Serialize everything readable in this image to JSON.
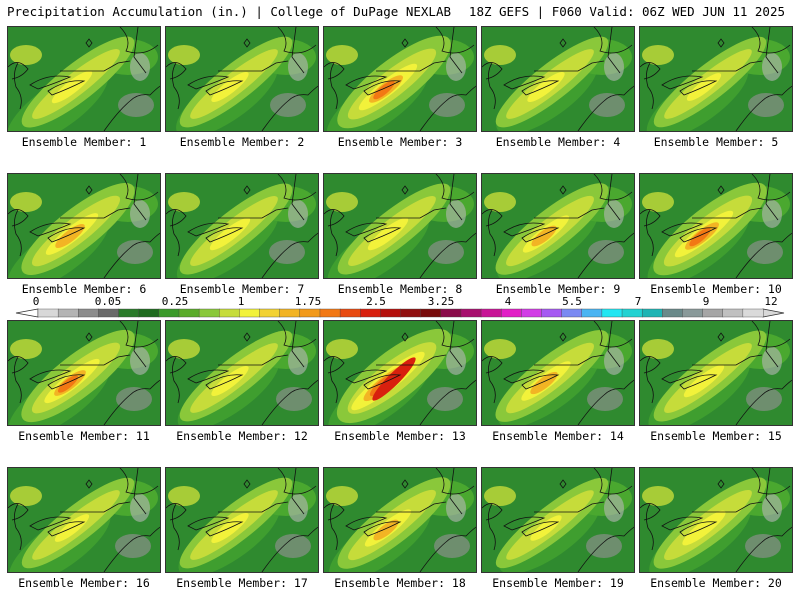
{
  "header": {
    "left": "Precipitation Accumulation (in.) | College of DuPage NEXLAB",
    "right": "18Z GEFS | F060 Valid: 06Z WED JUN 11 2025"
  },
  "legend": {
    "labels": [
      "0",
      "0.05",
      "0.25",
      "1",
      "1.75",
      "2.5",
      "3.25",
      "4",
      "5.5",
      "7",
      "9",
      "12"
    ],
    "colors": [
      "#d8d8d8",
      "#b4b4b4",
      "#8c8c8c",
      "#6a6a6a",
      "#2a7a2a",
      "#1e6b1e",
      "#3a9a2a",
      "#5aab2a",
      "#8ac83a",
      "#c6dc3a",
      "#f2f23a",
      "#f2d232",
      "#f2b424",
      "#f29a1a",
      "#f27814",
      "#e84a10",
      "#d8200e",
      "#b4100c",
      "#901010",
      "#780c0c",
      "#8a0c4a",
      "#a8106e",
      "#c81496",
      "#e21ec6",
      "#d23ce6",
      "#a65af2",
      "#7a8af2",
      "#4ab4f2",
      "#22e6f2",
      "#22d2d2",
      "#1eb4b4",
      "#6a8a8a",
      "#8a9a9a",
      "#a6a6a6",
      "#c0c0c0",
      "#dadada"
    ]
  },
  "panels": [
    {
      "caption": "Ensemble Member: 1",
      "intensity": 0.45
    },
    {
      "caption": "Ensemble Member: 2",
      "intensity": 0.4
    },
    {
      "caption": "Ensemble Member: 3",
      "intensity": 0.75
    },
    {
      "caption": "Ensemble Member: 4",
      "intensity": 0.4
    },
    {
      "caption": "Ensemble Member: 5",
      "intensity": 0.35
    },
    {
      "caption": "Ensemble Member: 6",
      "intensity": 0.65
    },
    {
      "caption": "Ensemble Member: 7",
      "intensity": 0.45
    },
    {
      "caption": "Ensemble Member: 8",
      "intensity": 0.45
    },
    {
      "caption": "Ensemble Member: 9",
      "intensity": 0.55
    },
    {
      "caption": "Ensemble Member: 10",
      "intensity": 0.75
    },
    {
      "caption": "Ensemble Member: 11",
      "intensity": 0.7
    },
    {
      "caption": "Ensemble Member: 12",
      "intensity": 0.4
    },
    {
      "caption": "Ensemble Member: 13",
      "intensity": 1.0
    },
    {
      "caption": "Ensemble Member: 14",
      "intensity": 0.6
    },
    {
      "caption": "Ensemble Member: 15",
      "intensity": 0.45
    },
    {
      "caption": "Ensemble Member: 16",
      "intensity": 0.35
    },
    {
      "caption": "Ensemble Member: 17",
      "intensity": 0.4
    },
    {
      "caption": "Ensemble Member: 18",
      "intensity": 0.55
    },
    {
      "caption": "Ensemble Member: 19",
      "intensity": 0.3
    },
    {
      "caption": "Ensemble Member: 20",
      "intensity": 0.5
    }
  ]
}
